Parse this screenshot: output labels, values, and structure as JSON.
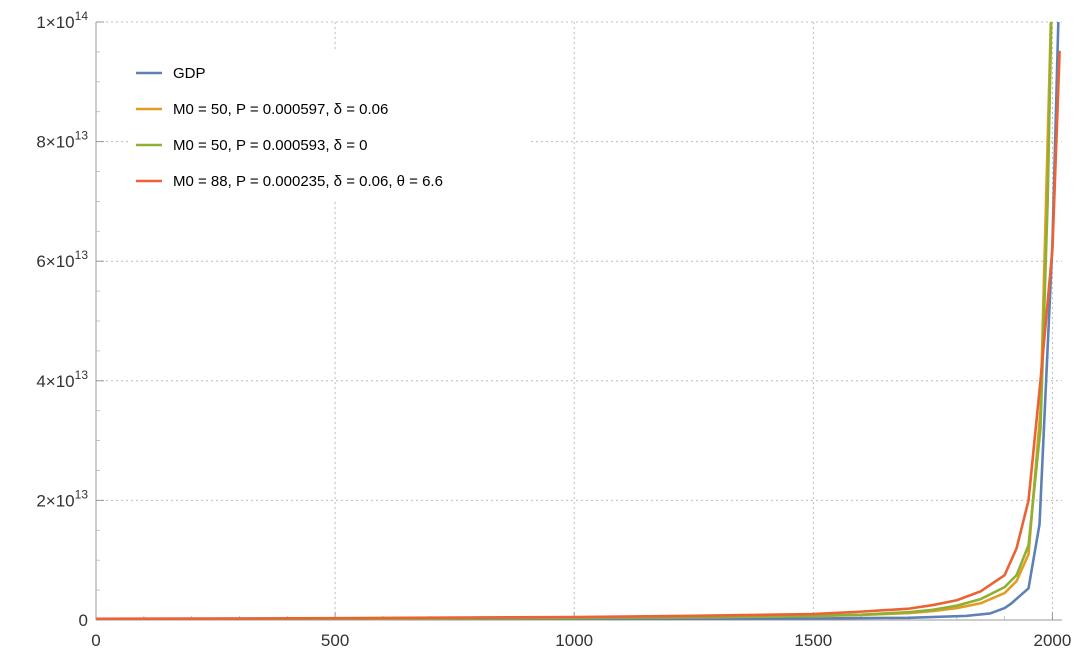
{
  "chart_data": {
    "type": "line",
    "title": "",
    "xlabel": "",
    "ylabel": "",
    "xlim": [
      0,
      2020
    ],
    "ylim": [
      0,
      100000000000000.0
    ],
    "grid": true,
    "legend_position": "top-left",
    "x_ticks": [
      {
        "value": 0,
        "label": "0"
      },
      {
        "value": 500,
        "label": "500"
      },
      {
        "value": 1000,
        "label": "1000"
      },
      {
        "value": 1500,
        "label": "1500"
      },
      {
        "value": 2000,
        "label": "2000"
      }
    ],
    "y_ticks": [
      {
        "value": 0,
        "label": "0"
      },
      {
        "value": 20000000000000.0,
        "mant": "2",
        "exp": "13"
      },
      {
        "value": 40000000000000.0,
        "mant": "4",
        "exp": "13"
      },
      {
        "value": 60000000000000.0,
        "mant": "6",
        "exp": "13"
      },
      {
        "value": 80000000000000.0,
        "mant": "8",
        "exp": "13"
      },
      {
        "value": 100000000000000.0,
        "mant": "1",
        "exp": "14"
      }
    ],
    "series": [
      {
        "name": "GDP",
        "color": "#5e81b5",
        "x": [
          0,
          1000,
          1500,
          1600,
          1700,
          1820,
          1870,
          1900,
          1913,
          1950,
          1973,
          2000,
          2015
        ],
        "y": [
          100000000000.0,
          120000000000.0,
          250000000000.0,
          330000000000.0,
          370000000000.0,
          690000000000.0,
          1100000000000.0,
          2000000000000.0,
          2700000000000.0,
          5300000000000.0,
          16000000000000.0,
          63000000000000.0,
          108000000000000.0
        ]
      },
      {
        "name": "M0 = 50, P = 0.000597, δ = 0.06",
        "color": "#e19c24",
        "x": [
          0,
          500,
          1000,
          1250,
          1500,
          1600,
          1700,
          1750,
          1800,
          1850,
          1900,
          1925,
          1950,
          1975,
          1990,
          2000,
          2010
        ],
        "y": [
          150000000000.0,
          200000000000.0,
          350000000000.0,
          450000000000.0,
          650000000000.0,
          850000000000.0,
          1150000000000.0,
          1500000000000.0,
          2000000000000.0,
          2800000000000.0,
          4500000000000.0,
          6500000000000.0,
          11000000000000.0,
          35000000000000.0,
          80000000000000.0,
          110000000000000.0,
          150000000000000.0
        ]
      },
      {
        "name": "M0 = 50, P = 0.000593, δ = 0",
        "color": "#8fb032",
        "x": [
          0,
          500,
          1000,
          1250,
          1500,
          1600,
          1700,
          1750,
          1800,
          1850,
          1900,
          1925,
          1950,
          1975,
          1990,
          2000,
          2010
        ],
        "y": [
          150000000000.0,
          210000000000.0,
          360000000000.0,
          470000000000.0,
          680000000000.0,
          900000000000.0,
          1300000000000.0,
          1700000000000.0,
          2400000000000.0,
          3500000000000.0,
          5500000000000.0,
          7500000000000.0,
          12500000000000.0,
          32000000000000.0,
          70000000000000.0,
          110000000000000.0,
          150000000000000.0
        ]
      },
      {
        "name": "M0 = 88, P = 0.000235, δ = 0.06, θ = 6.6",
        "color": "#eb6235",
        "x": [
          0,
          500,
          1000,
          1250,
          1500,
          1600,
          1700,
          1750,
          1800,
          1850,
          1900,
          1925,
          1950,
          1975,
          2000,
          2015
        ],
        "y": [
          200000000000.0,
          300000000000.0,
          500000000000.0,
          700000000000.0,
          1000000000000.0,
          1400000000000.0,
          1900000000000.0,
          2500000000000.0,
          3300000000000.0,
          4800000000000.0,
          7500000000000.0,
          12000000000000.0,
          20000000000000.0,
          40000000000000.0,
          62000000000000.0,
          95000000000000.0
        ]
      }
    ]
  },
  "legend": {
    "items": [
      {
        "text": "GDP"
      },
      {
        "text": "M0 = 50, P = 0.000597, δ = 0.06"
      },
      {
        "text": "M0 = 50, P = 0.000593, δ = 0"
      },
      {
        "text": "M0 = 88, P = 0.000235, δ = 0.06, θ = 6.6"
      }
    ]
  }
}
